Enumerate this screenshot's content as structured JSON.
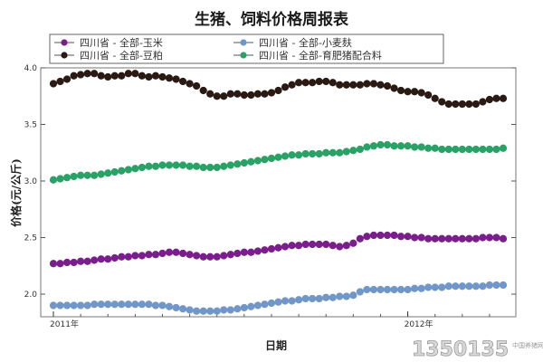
{
  "chart_data": {
    "type": "scatter",
    "title": "生猪、饲料价格周报表",
    "xlabel": "日期",
    "ylabel": "价格(元/公斤)",
    "x_tick_labels": [
      "2011年",
      "2012年"
    ],
    "x_tick_positions": [
      0,
      52
    ],
    "xlim": [
      0,
      66
    ],
    "ylim": [
      1.8,
      4.0
    ],
    "y_ticks": [
      2.0,
      2.5,
      3.0,
      3.5,
      4.0
    ],
    "y_tick_labels": [
      "2.0",
      "2.5",
      "3.0",
      "3.5",
      "4.0"
    ],
    "grid": false,
    "legend_position": "top",
    "series": [
      {
        "name": "四川省 - 全部-玉米",
        "color": "#7a1e8c",
        "values": [
          2.27,
          2.27,
          2.28,
          2.28,
          2.29,
          2.29,
          2.3,
          2.31,
          2.31,
          2.32,
          2.33,
          2.33,
          2.34,
          2.34,
          2.35,
          2.35,
          2.36,
          2.37,
          2.37,
          2.36,
          2.35,
          2.34,
          2.33,
          2.33,
          2.33,
          2.34,
          2.35,
          2.36,
          2.37,
          2.37,
          2.38,
          2.39,
          2.4,
          2.41,
          2.42,
          2.43,
          2.43,
          2.44,
          2.44,
          2.44,
          2.44,
          2.43,
          2.42,
          2.43,
          2.45,
          2.49,
          2.51,
          2.52,
          2.52,
          2.52,
          2.52,
          2.51,
          2.51,
          2.5,
          2.5,
          2.49,
          2.49,
          2.49,
          2.49,
          2.49,
          2.49,
          2.49,
          2.49,
          2.5,
          2.5,
          2.5,
          2.49
        ]
      },
      {
        "name": "四川省 - 全部-豆粕",
        "color": "#2b1a14",
        "values": [
          3.86,
          3.88,
          3.9,
          3.93,
          3.94,
          3.95,
          3.95,
          3.93,
          3.92,
          3.93,
          3.93,
          3.95,
          3.95,
          3.93,
          3.92,
          3.93,
          3.92,
          3.91,
          3.9,
          3.88,
          3.86,
          3.84,
          3.8,
          3.77,
          3.75,
          3.75,
          3.77,
          3.77,
          3.76,
          3.76,
          3.77,
          3.77,
          3.78,
          3.8,
          3.83,
          3.85,
          3.87,
          3.87,
          3.87,
          3.88,
          3.88,
          3.87,
          3.85,
          3.85,
          3.85,
          3.85,
          3.86,
          3.86,
          3.85,
          3.84,
          3.82,
          3.8,
          3.79,
          3.79,
          3.78,
          3.76,
          3.73,
          3.7,
          3.68,
          3.68,
          3.68,
          3.68,
          3.68,
          3.7,
          3.72,
          3.73,
          3.73
        ]
      },
      {
        "name": "四川省 - 全部-小麦麸",
        "color": "#7196c8",
        "values": [
          1.9,
          1.9,
          1.9,
          1.9,
          1.9,
          1.9,
          1.91,
          1.91,
          1.91,
          1.91,
          1.91,
          1.91,
          1.91,
          1.91,
          1.91,
          1.9,
          1.9,
          1.89,
          1.88,
          1.87,
          1.86,
          1.85,
          1.85,
          1.85,
          1.85,
          1.86,
          1.86,
          1.87,
          1.88,
          1.89,
          1.9,
          1.91,
          1.92,
          1.93,
          1.94,
          1.94,
          1.95,
          1.96,
          1.96,
          1.96,
          1.97,
          1.97,
          1.98,
          1.98,
          1.99,
          2.02,
          2.04,
          2.04,
          2.04,
          2.04,
          2.04,
          2.04,
          2.04,
          2.05,
          2.05,
          2.06,
          2.06,
          2.06,
          2.07,
          2.07,
          2.07,
          2.07,
          2.07,
          2.07,
          2.08,
          2.08,
          2.08
        ]
      },
      {
        "name": "四川省 - 全部-育肥猪配合料",
        "color": "#2aa166",
        "values": [
          3.01,
          3.02,
          3.03,
          3.04,
          3.05,
          3.05,
          3.05,
          3.06,
          3.07,
          3.08,
          3.09,
          3.1,
          3.11,
          3.12,
          3.13,
          3.13,
          3.14,
          3.14,
          3.14,
          3.14,
          3.13,
          3.13,
          3.12,
          3.12,
          3.12,
          3.13,
          3.14,
          3.15,
          3.16,
          3.17,
          3.18,
          3.19,
          3.2,
          3.21,
          3.22,
          3.23,
          3.23,
          3.24,
          3.24,
          3.24,
          3.25,
          3.25,
          3.25,
          3.26,
          3.27,
          3.28,
          3.3,
          3.31,
          3.32,
          3.32,
          3.31,
          3.31,
          3.31,
          3.3,
          3.3,
          3.29,
          3.29,
          3.28,
          3.28,
          3.28,
          3.28,
          3.28,
          3.28,
          3.28,
          3.28,
          3.28,
          3.29
        ]
      }
    ]
  },
  "watermark": {
    "main": "1350135",
    "sub": "中国养猪网"
  }
}
